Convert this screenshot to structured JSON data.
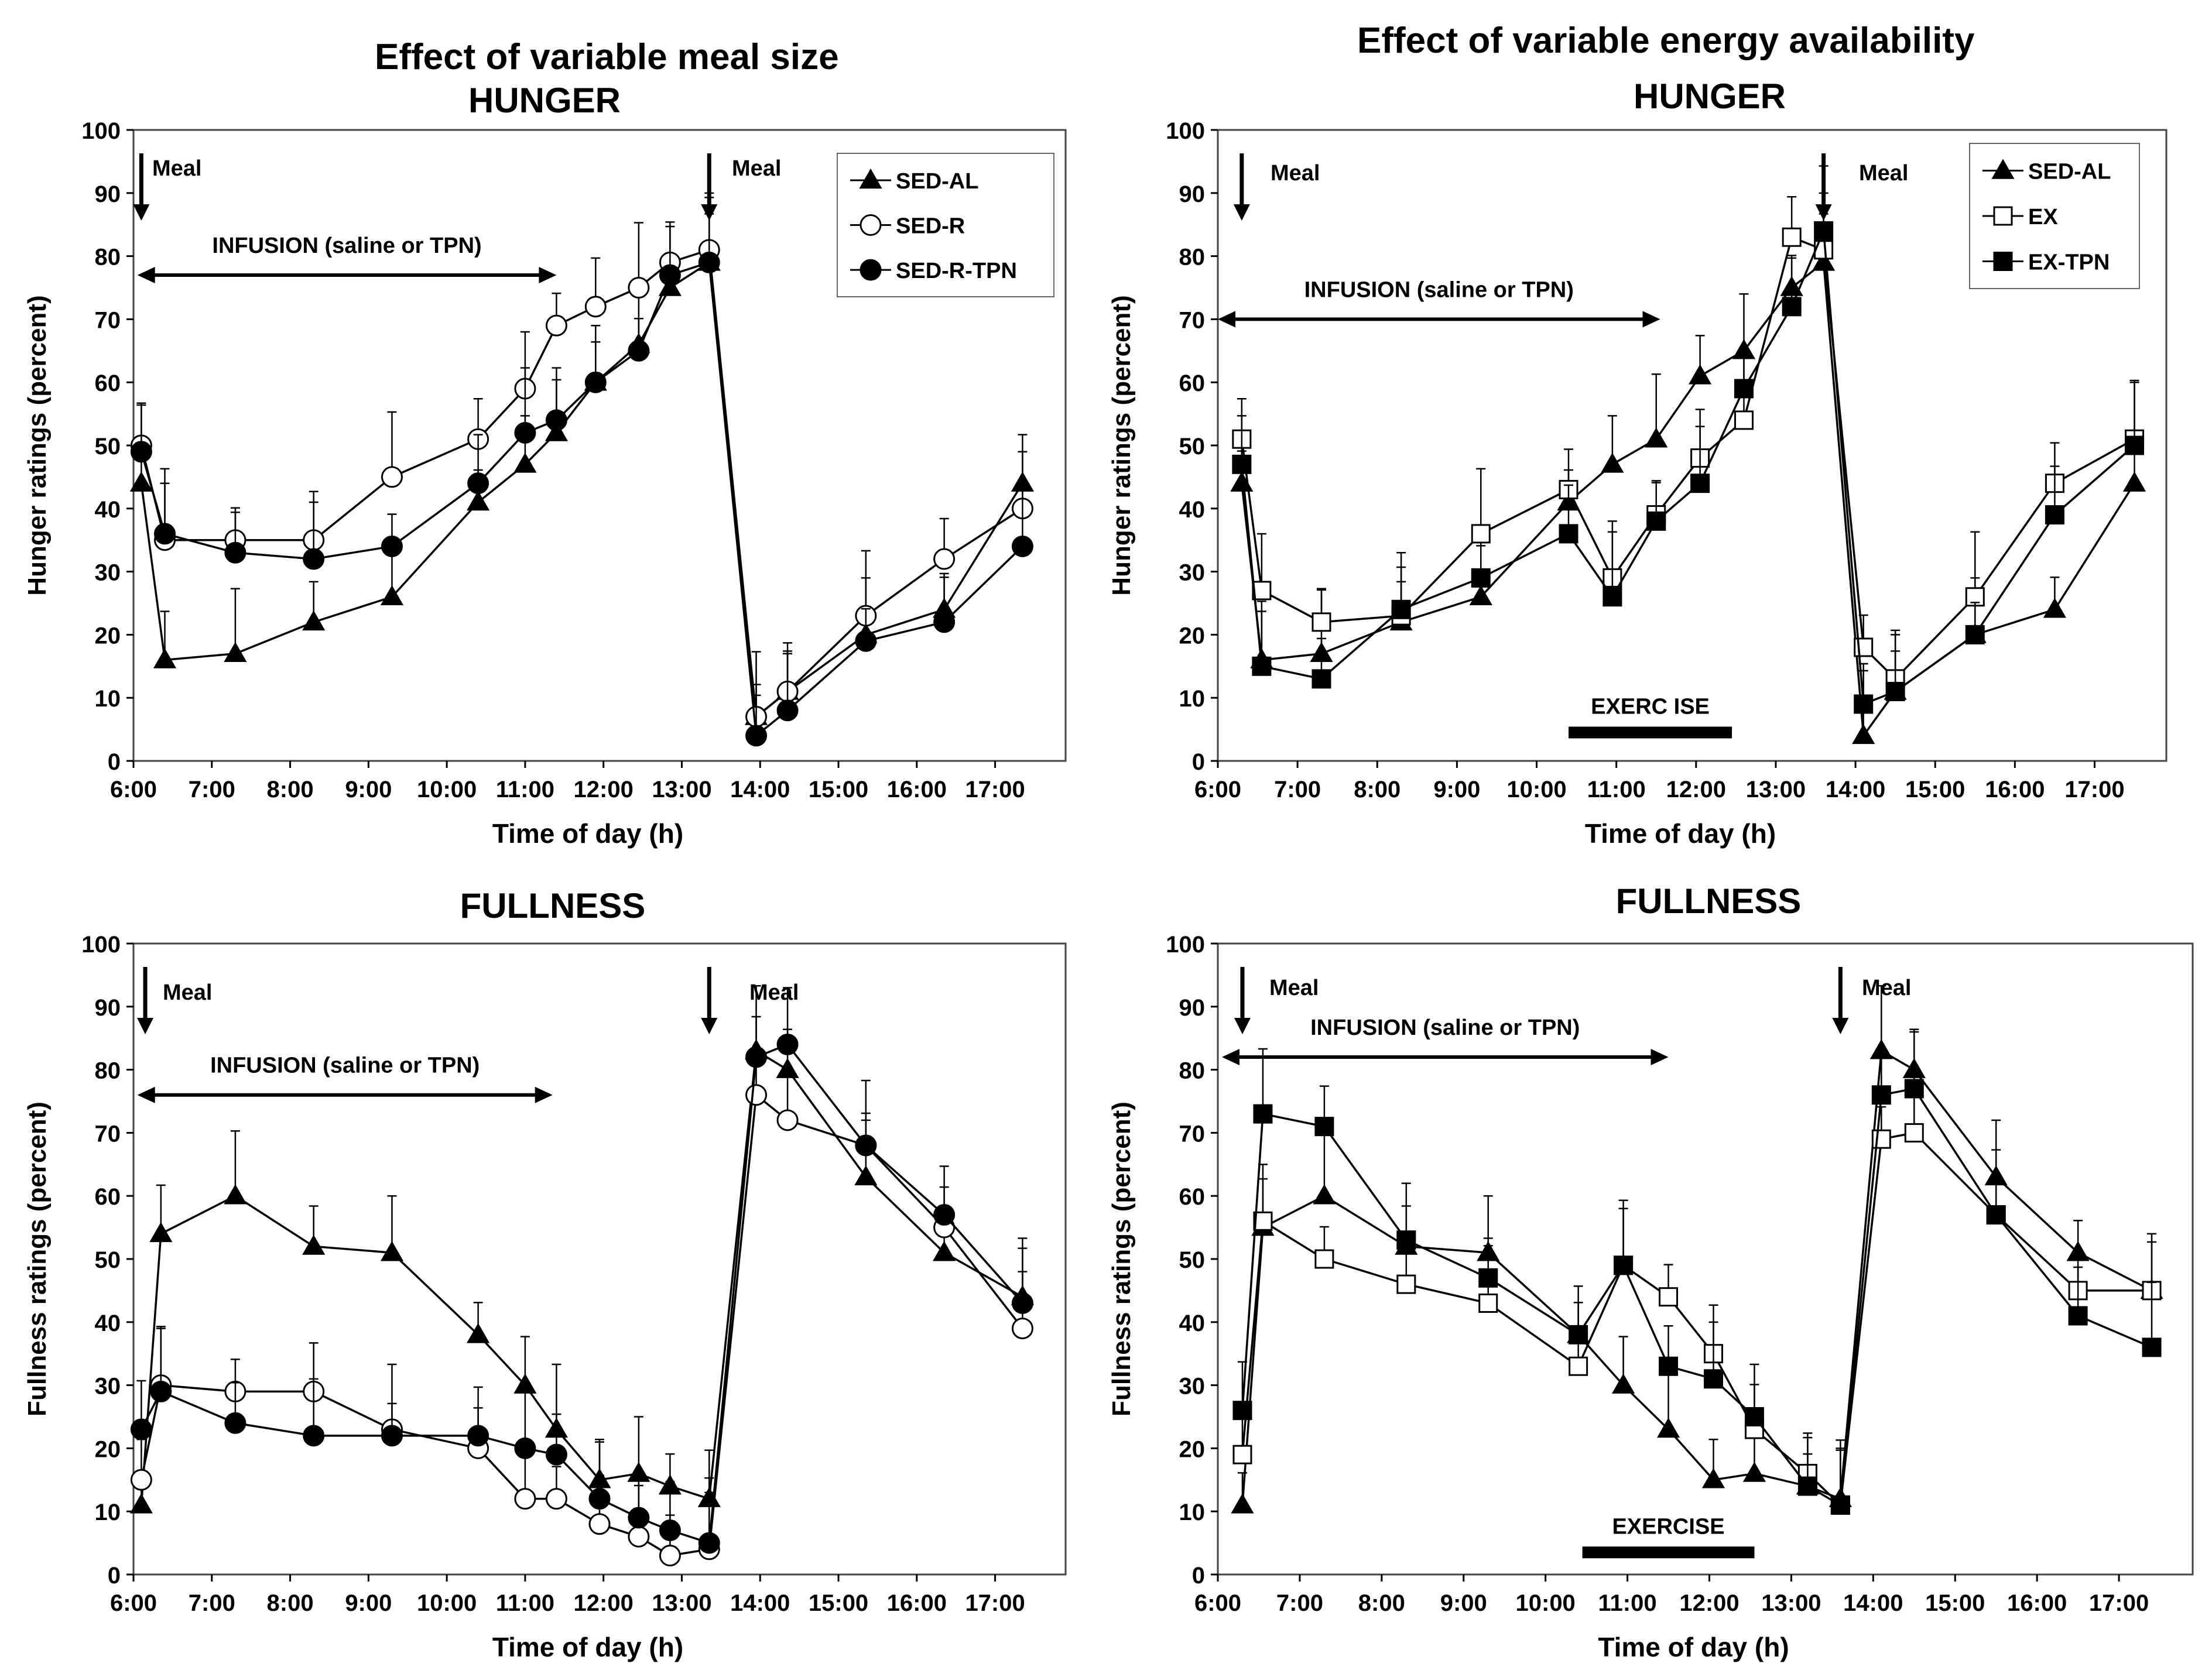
{
  "figure": {
    "left_title": "Effect of variable meal size",
    "right_title": "Effect of variable energy availability"
  },
  "chart_data": [
    {
      "id": "p1",
      "type": "line",
      "title": "HUNGER",
      "xlabel": "Time of day (h)",
      "ylabel": "Hunger ratings (percent)",
      "xlim": [
        6.0,
        17.9
      ],
      "ylim": [
        0,
        100
      ],
      "x_ticks": [
        "6:00",
        "7:00",
        "8:00",
        "9:00",
        "10:00",
        "11:00",
        "12:00",
        "13:00",
        "14:00",
        "15:00",
        "16:00",
        "17:00"
      ],
      "y_ticks": [
        0,
        10,
        20,
        30,
        40,
        50,
        60,
        70,
        80,
        90,
        100
      ],
      "legend_position": "top-right",
      "annotations": {
        "meal1": {
          "label": "Meal",
          "x": 6.1
        },
        "meal2": {
          "label": "Meal",
          "x": 13.35
        },
        "infusion": {
          "label": "INFUSION (saline or TPN)",
          "x_start": 6.05,
          "x_end": 11.4,
          "y": 77
        },
        "exercise": null
      },
      "series": [
        {
          "name": "SED-AL",
          "marker": "triangle",
          "fill": "#000",
          "x": [
            6.1,
            6.4,
            7.3,
            8.3,
            9.3,
            10.4,
            11.0,
            11.4,
            11.9,
            12.45,
            12.85,
            13.35,
            13.95,
            14.35,
            15.35,
            16.35,
            17.35
          ],
          "y": [
            44,
            16,
            17,
            22,
            26,
            41,
            47,
            52,
            60,
            66,
            75,
            79,
            7,
            11,
            20,
            24,
            44
          ]
        },
        {
          "name": "SED-R",
          "marker": "circle",
          "fill": "#fff",
          "x": [
            6.1,
            6.4,
            7.3,
            8.3,
            9.3,
            10.4,
            11.0,
            11.4,
            11.9,
            12.45,
            12.85,
            13.35,
            13.95,
            14.35,
            15.35,
            16.35,
            17.35
          ],
          "y": [
            50,
            35,
            35,
            35,
            45,
            51,
            59,
            69,
            72,
            75,
            79,
            81,
            7,
            11,
            23,
            32,
            40
          ]
        },
        {
          "name": "SED-R-TPN",
          "marker": "circle",
          "fill": "#000",
          "x": [
            6.1,
            6.4,
            7.3,
            8.3,
            9.3,
            10.4,
            11.0,
            11.4,
            11.9,
            12.45,
            12.85,
            13.35,
            13.95,
            14.35,
            15.35,
            16.35,
            17.35
          ],
          "y": [
            49,
            36,
            33,
            32,
            34,
            44,
            52,
            54,
            60,
            65,
            77,
            79,
            4,
            8,
            19,
            22,
            34
          ]
        }
      ]
    },
    {
      "id": "p2",
      "type": "line",
      "title": "HUNGER",
      "xlabel": "Time of day (h)",
      "ylabel": "Hunger ratings (percent)",
      "xlim": [
        6.0,
        17.9
      ],
      "ylim": [
        0,
        100
      ],
      "x_ticks": [
        "6:00",
        "7:00",
        "8:00",
        "9:00",
        "10:00",
        "11:00",
        "12:00",
        "13:00",
        "14:00",
        "15:00",
        "16:00",
        "17:00"
      ],
      "y_ticks": [
        0,
        10,
        20,
        30,
        40,
        50,
        60,
        70,
        80,
        90,
        100
      ],
      "legend_position": "top-right",
      "annotations": {
        "meal1": {
          "label": "Meal",
          "x": 6.3
        },
        "meal2": {
          "label": "Meal",
          "x": 13.6
        },
        "infusion": {
          "label": "INFUSION (saline or TPN)",
          "x_start": 6.0,
          "x_end": 11.55,
          "y": 70
        },
        "exercise": {
          "label": "EXERC ISE",
          "x_start": 10.4,
          "x_end": 12.45,
          "y": 4.5
        }
      },
      "series": [
        {
          "name": "SED-AL",
          "marker": "triangle",
          "fill": "#000",
          "x": [
            6.3,
            6.55,
            7.3,
            8.3,
            9.3,
            10.4,
            10.95,
            11.5,
            12.05,
            12.6,
            13.2,
            13.6,
            14.1,
            14.5,
            15.5,
            16.5,
            17.5
          ],
          "y": [
            44,
            16,
            17,
            22,
            26,
            41,
            47,
            51,
            61,
            65,
            75,
            79,
            4,
            11,
            20,
            24,
            44
          ]
        },
        {
          "name": "EX",
          "marker": "square",
          "fill": "#fff",
          "x": [
            6.3,
            6.55,
            7.3,
            8.3,
            9.3,
            10.4,
            10.95,
            11.5,
            12.05,
            12.6,
            13.2,
            13.6,
            14.1,
            14.5,
            15.5,
            16.5,
            17.5
          ],
          "y": [
            51,
            27,
            22,
            23,
            36,
            43,
            29,
            39,
            48,
            54,
            83,
            81,
            18,
            13,
            26,
            44,
            51
          ]
        },
        {
          "name": "EX-TPN",
          "marker": "square",
          "fill": "#000",
          "x": [
            6.3,
            6.55,
            7.3,
            8.3,
            9.3,
            10.4,
            10.95,
            11.5,
            12.05,
            12.6,
            13.2,
            13.6,
            14.1,
            14.5,
            15.5,
            16.5,
            17.5
          ],
          "y": [
            47,
            15,
            13,
            24,
            29,
            36,
            26,
            38,
            44,
            59,
            72,
            84,
            9,
            11,
            20,
            39,
            50
          ]
        }
      ]
    },
    {
      "id": "p3",
      "type": "line",
      "title": "FULLNESS",
      "xlabel": "Time of day (h)",
      "ylabel": "Fullness ratings (percent)",
      "xlim": [
        6.0,
        17.9
      ],
      "ylim": [
        0,
        100
      ],
      "x_ticks": [
        "6:00",
        "7:00",
        "8:00",
        "9:00",
        "10:00",
        "11:00",
        "12:00",
        "13:00",
        "14:00",
        "15:00",
        "16:00",
        "17:00"
      ],
      "y_ticks": [
        0,
        10,
        20,
        30,
        40,
        50,
        60,
        70,
        80,
        90,
        100
      ],
      "legend_position": "none",
      "annotations": {
        "meal1": {
          "label": "Meal",
          "x": 6.15
        },
        "meal2": {
          "label": "Meal",
          "x": 13.35
        },
        "infusion": {
          "label": "INFUSION (saline or TPN)",
          "x_start": 6.05,
          "x_end": 11.35,
          "y": 76
        },
        "exercise": null
      },
      "series": [
        {
          "name": "SED-AL",
          "marker": "triangle",
          "fill": "#000",
          "x": [
            6.1,
            6.35,
            7.3,
            8.3,
            9.3,
            10.4,
            11.0,
            11.4,
            11.95,
            12.45,
            12.85,
            13.35,
            13.95,
            14.35,
            15.35,
            16.35,
            17.35
          ],
          "y": [
            11,
            54,
            60,
            52,
            51,
            38,
            30,
            23,
            15,
            16,
            14,
            12,
            83,
            80,
            63,
            51,
            44
          ]
        },
        {
          "name": "SED-R",
          "marker": "circle",
          "fill": "#fff",
          "x": [
            6.1,
            6.35,
            7.3,
            8.3,
            9.3,
            10.4,
            11.0,
            11.4,
            11.95,
            12.45,
            12.85,
            13.35,
            13.95,
            14.35,
            15.35,
            16.35,
            17.35
          ],
          "y": [
            15,
            30,
            29,
            29,
            23,
            20,
            12,
            12,
            8,
            6,
            3,
            4,
            76,
            72,
            68,
            55,
            39
          ]
        },
        {
          "name": "SED-R-TPN",
          "marker": "circle",
          "fill": "#000",
          "x": [
            6.1,
            6.35,
            7.3,
            8.3,
            9.3,
            10.4,
            11.0,
            11.4,
            11.95,
            12.45,
            12.85,
            13.35,
            13.95,
            14.35,
            15.35,
            16.35,
            17.35
          ],
          "y": [
            23,
            29,
            24,
            22,
            22,
            22,
            20,
            19,
            12,
            9,
            7,
            5,
            82,
            84,
            68,
            57,
            43
          ]
        }
      ]
    },
    {
      "id": "p4",
      "type": "line",
      "title": "FULLNESS",
      "xlabel": "Time of day (h)",
      "ylabel": "Fullness ratings (percent)",
      "xlim": [
        6.0,
        17.9
      ],
      "ylim": [
        0,
        100
      ],
      "x_ticks": [
        "6:00",
        "7:00",
        "8:00",
        "9:00",
        "10:00",
        "11:00",
        "12:00",
        "13:00",
        "14:00",
        "15:00",
        "16:00",
        "17:00"
      ],
      "y_ticks": [
        0,
        10,
        20,
        30,
        40,
        50,
        60,
        70,
        80,
        90,
        100
      ],
      "legend_position": "none",
      "annotations": {
        "meal1": {
          "label": "Meal",
          "x": 6.3
        },
        "meal2": {
          "label": "Meal",
          "x": 13.6
        },
        "infusion": {
          "label": "INFUSION (saline or TPN)",
          "x_start": 6.05,
          "x_end": 11.5,
          "y": 82
        },
        "exercise": {
          "label": "EXERCISE",
          "x_start": 10.45,
          "x_end": 12.55,
          "y": 3.5
        }
      },
      "series": [
        {
          "name": "SED-AL",
          "marker": "triangle",
          "fill": "#000",
          "x": [
            6.3,
            6.55,
            7.3,
            8.3,
            9.3,
            10.4,
            10.95,
            11.5,
            12.05,
            12.55,
            13.2,
            13.6,
            14.1,
            14.5,
            15.5,
            16.5,
            17.4
          ],
          "y": [
            11,
            55,
            60,
            52,
            51,
            38,
            30,
            23,
            15,
            16,
            14,
            12,
            83,
            80,
            63,
            51,
            45
          ]
        },
        {
          "name": "EX",
          "marker": "square",
          "fill": "#fff",
          "x": [
            6.3,
            6.55,
            7.3,
            8.3,
            9.3,
            10.4,
            10.95,
            11.5,
            12.05,
            12.55,
            13.2,
            13.6,
            14.1,
            14.5,
            15.5,
            16.5,
            17.4
          ],
          "y": [
            19,
            56,
            50,
            46,
            43,
            33,
            49,
            44,
            35,
            23,
            16,
            11,
            69,
            70,
            57,
            45,
            45
          ]
        },
        {
          "name": "EX-TPN",
          "marker": "square",
          "fill": "#000",
          "x": [
            6.3,
            6.55,
            7.3,
            8.3,
            9.3,
            10.4,
            10.95,
            11.5,
            12.05,
            12.55,
            13.2,
            13.6,
            14.1,
            14.5,
            15.5,
            16.5,
            17.4
          ],
          "y": [
            26,
            73,
            71,
            53,
            47,
            38,
            49,
            33,
            31,
            25,
            14,
            11,
            76,
            77,
            57,
            41,
            36
          ]
        }
      ]
    }
  ]
}
